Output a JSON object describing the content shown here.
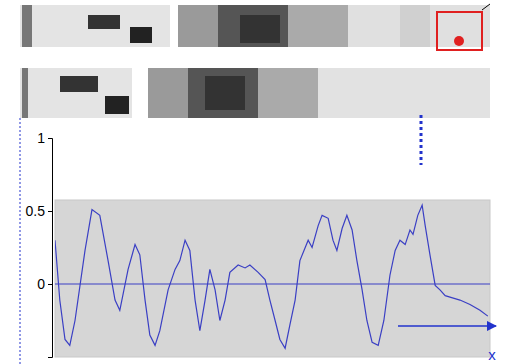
{
  "chart_data": {
    "type": "line",
    "x_label": "x",
    "color": "#3a3fc4",
    "x": [
      0,
      1.1,
      2.3,
      3.4,
      4.6,
      6.9,
      8.5,
      10.3,
      12.2,
      13.8,
      14.9,
      16.8,
      18.4,
      19.5,
      20.7,
      21.8,
      23.0,
      24.1,
      26.0,
      27.6,
      28.7,
      29.9,
      31.0,
      32.2,
      33.3,
      34.5,
      35.6,
      36.8,
      37.9,
      39.1,
      40.2,
      42.1,
      43.7,
      44.8,
      46.7,
      48.3,
      49.4,
      50.6,
      51.7,
      52.9,
      54.0,
      55.2,
      56.3,
      58.2,
      59.1,
      60.5,
      61.4,
      62.8,
      63.9,
      64.8,
      66.0,
      67.1,
      68.3,
      69.4,
      70.6,
      71.7,
      72.9,
      74.3,
      75.6,
      77.0,
      78.2,
      79.3,
      80.5,
      81.6,
      82.3,
      83.4,
      84.4,
      85.1,
      86.2,
      87.4,
      88.5,
      89.7,
      90.8,
      93.1,
      95.4,
      97.7,
      99.5
    ],
    "values": [
      0.3,
      -0.11,
      -0.38,
      -0.42,
      -0.25,
      0.23,
      0.51,
      0.47,
      0.16,
      -0.11,
      -0.18,
      0.1,
      0.27,
      0.2,
      -0.11,
      -0.35,
      -0.42,
      -0.32,
      -0.04,
      0.1,
      0.16,
      0.3,
      0.23,
      -0.11,
      -0.32,
      -0.11,
      0.1,
      -0.04,
      -0.25,
      -0.11,
      0.08,
      0.13,
      0.11,
      0.13,
      0.08,
      0.03,
      -0.11,
      -0.25,
      -0.38,
      -0.44,
      -0.28,
      -0.11,
      0.16,
      0.3,
      0.25,
      0.4,
      0.47,
      0.45,
      0.3,
      0.23,
      0.38,
      0.47,
      0.37,
      0.16,
      -0.04,
      -0.25,
      -0.4,
      -0.42,
      -0.25,
      0.06,
      0.23,
      0.3,
      0.27,
      0.37,
      0.34,
      0.47,
      0.54,
      0.4,
      0.2,
      -0.01,
      -0.04,
      -0.08,
      -0.09,
      -0.11,
      -0.14,
      -0.18,
      -0.22
    ],
    "xlim": [
      0,
      100
    ],
    "ylim": [
      -0.5,
      1
    ],
    "yticks": [
      1,
      0.5,
      0
    ],
    "grid": true,
    "tick_labels": "y"
  }
}
